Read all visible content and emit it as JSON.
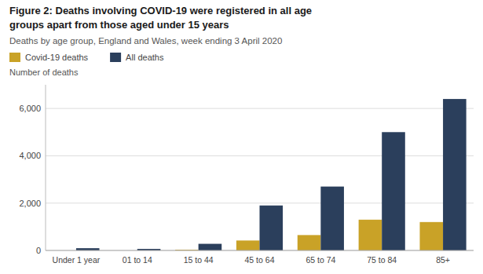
{
  "chart_data": {
    "type": "bar",
    "title": [
      "Figure 2: Deaths involving COVID-19 were registered in all age",
      "groups apart from those aged under 15 years"
    ],
    "subtitle": "Deaths by age group, England and Wales, week ending 3 April 2020",
    "ylabel": "Number of deaths",
    "categories": [
      "Under 1 year",
      "01 to 14",
      "15 to 44",
      "45 to 64",
      "65 to 74",
      "75 to 84",
      "85+"
    ],
    "series": [
      {
        "name": "Covid-19 deaths",
        "color": "#c9a227",
        "values": [
          0,
          0,
          30,
          420,
          650,
          1300,
          1200
        ]
      },
      {
        "name": "All deaths",
        "color": "#2b3f5c",
        "values": [
          95,
          65,
          280,
          1900,
          2700,
          5000,
          6400
        ]
      }
    ],
    "ylim": [
      0,
      7000
    ],
    "yticks": [
      0,
      {
        "value": 2000,
        "label": "2,000"
      },
      {
        "value": 4000,
        "label": "4,000"
      },
      {
        "value": 6000,
        "label": "6,000"
      }
    ],
    "grid": true,
    "legend": "top-left"
  }
}
